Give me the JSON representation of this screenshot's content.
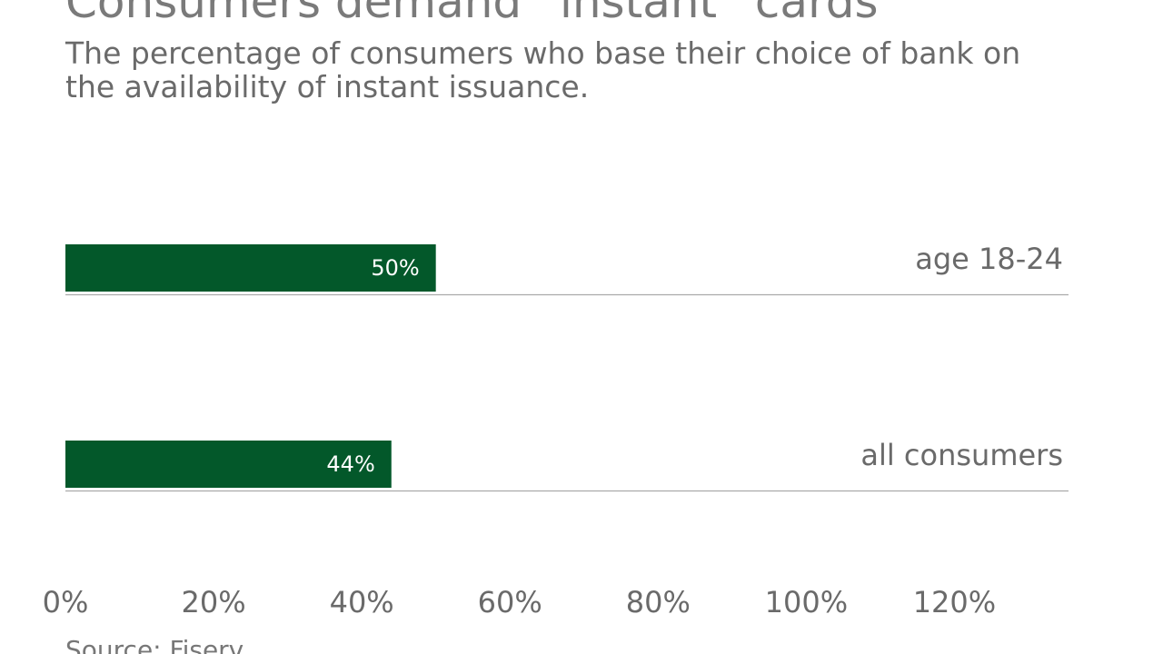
{
  "chart_data": {
    "type": "hbar",
    "title": "Consumers demand “instant” cards",
    "subtitle": "The percentage of consumers who base their choice of bank on the availability of instant issuance.",
    "categories": [
      "age 18-24",
      "all consumers"
    ],
    "values": [
      50,
      44
    ],
    "value_labels": [
      "50%",
      "44%"
    ],
    "color": "#03582a",
    "xlim": [
      0,
      135.4
    ],
    "xticks": [
      {
        "value": 0,
        "label": "0%"
      },
      {
        "value": 20,
        "label": "20%"
      },
      {
        "value": 40,
        "label": "40%"
      },
      {
        "value": 60,
        "label": "60%"
      },
      {
        "value": 80,
        "label": "80%"
      },
      {
        "value": 100,
        "label": "100%"
      },
      {
        "value": 120,
        "label": "120%"
      }
    ],
    "source": "Source: Fiserv"
  }
}
